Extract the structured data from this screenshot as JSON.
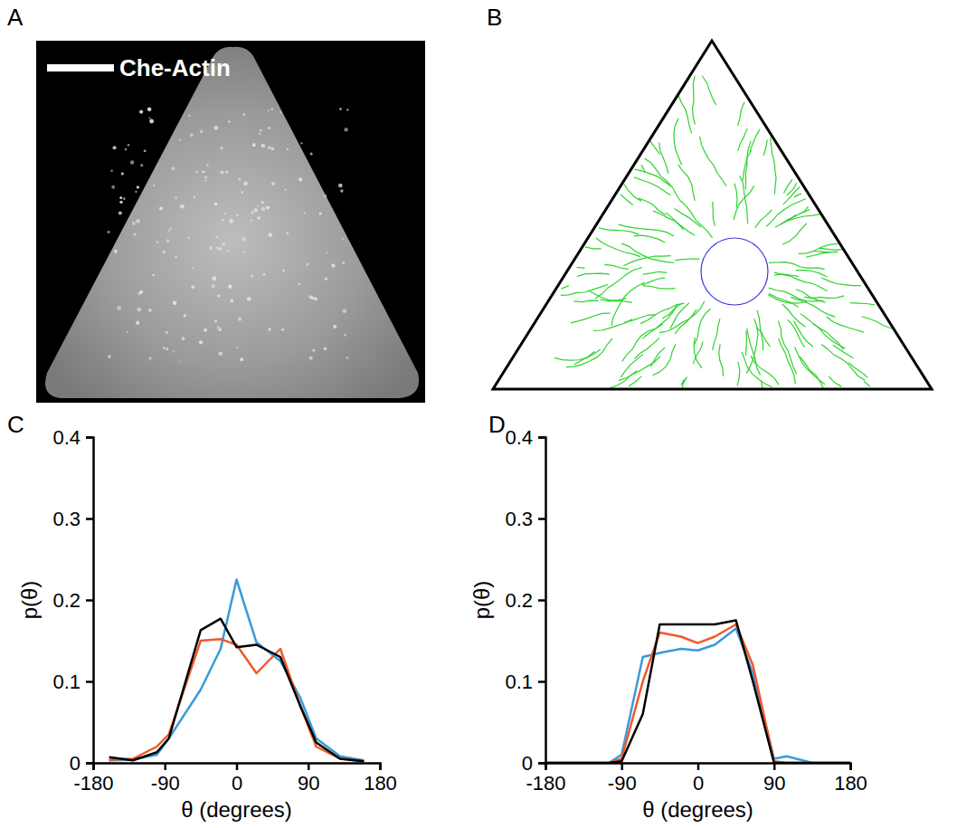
{
  "chart_data": [
    {
      "type": "image",
      "panel": "A",
      "label": "Che-Actin"
    },
    {
      "type": "diagram",
      "panel": "B"
    },
    {
      "type": "line",
      "panel": "C",
      "xlabel": "θ (degrees)",
      "ylabel": "p(θ)",
      "x": [
        -160,
        -130,
        -100,
        -85,
        -45,
        -20,
        0,
        25,
        55,
        80,
        100,
        130,
        160
      ],
      "series": [
        {
          "color": "#3a9ad9",
          "values": [
            0.003,
            0.004,
            0.01,
            0.03,
            0.09,
            0.14,
            0.225,
            0.148,
            0.125,
            0.08,
            0.03,
            0.008,
            0.003
          ]
        },
        {
          "color": "#f0592a",
          "values": [
            0.004,
            0.005,
            0.02,
            0.035,
            0.15,
            0.152,
            0.145,
            0.11,
            0.14,
            0.07,
            0.02,
            0.005,
            0.002
          ]
        },
        {
          "color": "#000000",
          "values": [
            0.007,
            0.003,
            0.013,
            0.03,
            0.163,
            0.177,
            0.142,
            0.145,
            0.13,
            0.07,
            0.025,
            0.005,
            0.002
          ]
        }
      ],
      "xlim": [
        -180,
        180
      ],
      "xticks": [
        -180,
        -90,
        0,
        90,
        180
      ],
      "ylim": [
        0,
        0.4
      ],
      "yticks": [
        0,
        0.1,
        0.2,
        0.3,
        0.4
      ]
    },
    {
      "type": "line",
      "panel": "D",
      "xlabel": "θ (degrees)",
      "ylabel": "p(θ)",
      "x": [
        -180,
        -135,
        -105,
        -90,
        -65,
        -45,
        -20,
        0,
        20,
        45,
        65,
        90,
        105,
        135,
        180
      ],
      "series": [
        {
          "color": "#3a9ad9",
          "values": [
            0,
            0,
            0,
            0.01,
            0.13,
            0.135,
            0.14,
            0.138,
            0.145,
            0.165,
            0.11,
            0.005,
            0.008,
            0,
            0
          ]
        },
        {
          "color": "#f0592a",
          "values": [
            0,
            0,
            0,
            0.005,
            0.1,
            0.16,
            0.155,
            0.147,
            0.155,
            0.17,
            0.12,
            0.002,
            0,
            0,
            0
          ]
        },
        {
          "color": "#000000",
          "values": [
            0,
            0,
            0,
            0.002,
            0.06,
            0.17,
            0.17,
            0.17,
            0.17,
            0.175,
            0.1,
            0,
            0,
            0,
            0
          ]
        }
      ],
      "xlim": [
        -180,
        180
      ],
      "xticks": [
        -180,
        -90,
        0,
        90,
        180
      ],
      "ylim": [
        0,
        0.4
      ],
      "yticks": [
        0,
        0.1,
        0.2,
        0.3,
        0.4
      ]
    }
  ]
}
